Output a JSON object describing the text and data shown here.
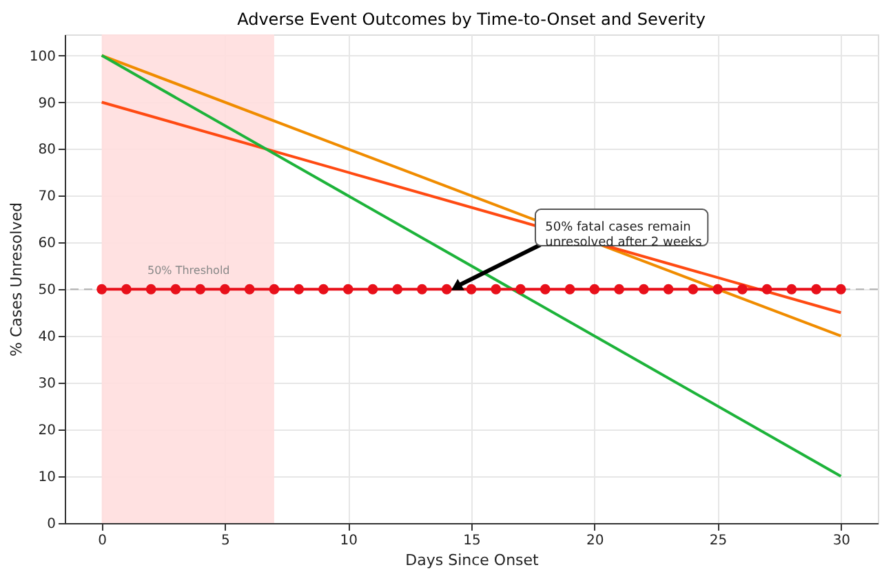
{
  "chart_data": {
    "type": "line",
    "title": "Adverse Event Outcomes by Time-to-Onset and Severity",
    "xlabel": "Days Since Onset",
    "ylabel": "% Cases Unresolved",
    "series": [
      {
        "color": "#f08c00",
        "x": [
          0,
          30
        ],
        "values": [
          100,
          40
        ],
        "marker": "none"
      },
      {
        "color": "#ff4a12",
        "x": [
          0,
          30
        ],
        "values": [
          90,
          45
        ],
        "marker": "none"
      },
      {
        "color": "#1db33a",
        "x": [
          0,
          30
        ],
        "values": [
          100,
          10
        ],
        "marker": "none"
      },
      {
        "color": "#e8101a",
        "x": [
          0,
          1,
          2,
          3,
          4,
          5,
          6,
          7,
          8,
          9,
          10,
          11,
          12,
          13,
          14,
          15,
          16,
          17,
          18,
          19,
          20,
          21,
          22,
          23,
          24,
          25,
          26,
          27,
          28,
          29,
          30
        ],
        "values": [
          50,
          50,
          50,
          50,
          50,
          50,
          50,
          50,
          50,
          50,
          50,
          50,
          50,
          50,
          50,
          50,
          50,
          50,
          50,
          50,
          50,
          50,
          50,
          50,
          50,
          50,
          50,
          50,
          50,
          50,
          50
        ],
        "marker": "circle"
      }
    ],
    "xlim": [
      -1.5,
      31.5
    ],
    "xticks": [
      0,
      5,
      10,
      15,
      20,
      25,
      30
    ],
    "ylim": [
      0,
      104.5
    ],
    "yticks": [
      0,
      10,
      20,
      30,
      40,
      50,
      60,
      70,
      80,
      90,
      100
    ],
    "grid": true,
    "line_style": "solid",
    "ref_lines": [
      {
        "axis": "y",
        "value": 50,
        "label": "50% Threshold",
        "color": "#b0b0b0",
        "line_style": "dashed"
      }
    ],
    "bands": [
      {
        "axis": "x",
        "from": 0,
        "to": 7,
        "color": "#ffdede"
      }
    ],
    "annotations": [
      {
        "text": "50% fatal cases remain\nunresolved after 2 weeks",
        "x": 14,
        "y": 50
      }
    ]
  }
}
